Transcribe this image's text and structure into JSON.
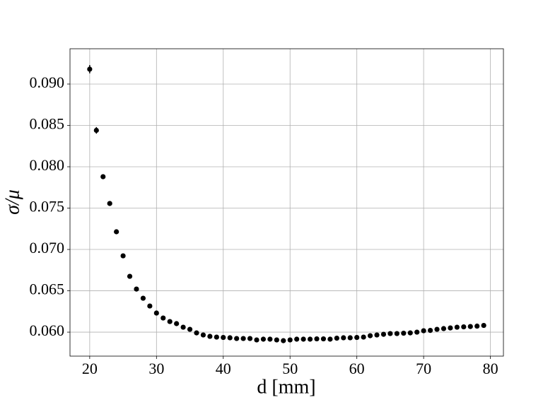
{
  "chart_data": {
    "type": "scatter",
    "xlabel": "d [mm]",
    "ylabel": "σ/μ",
    "x": [
      20,
      21,
      22,
      23,
      24,
      25,
      26,
      27,
      28,
      29,
      30,
      31,
      32,
      33,
      34,
      35,
      36,
      37,
      38,
      39,
      40,
      41,
      42,
      43,
      44,
      45,
      46,
      47,
      48,
      49,
      50,
      51,
      52,
      53,
      54,
      55,
      56,
      57,
      58,
      59,
      60,
      61,
      62,
      63,
      64,
      65,
      66,
      67,
      68,
      69,
      70,
      71,
      72,
      73,
      74,
      75,
      76,
      77,
      78,
      79
    ],
    "values": [
      0.0918,
      0.0844,
      0.0788,
      0.07556,
      0.07214,
      0.06923,
      0.06675,
      0.06521,
      0.0641,
      0.06316,
      0.06231,
      0.06171,
      0.06128,
      0.06103,
      0.0606,
      0.06034,
      0.05991,
      0.05966,
      0.05949,
      0.0594,
      0.05936,
      0.05932,
      0.05923,
      0.05923,
      0.05923,
      0.05906,
      0.05915,
      0.05915,
      0.05906,
      0.05897,
      0.05906,
      0.05915,
      0.05915,
      0.05915,
      0.05919,
      0.05919,
      0.05915,
      0.05927,
      0.05932,
      0.05932,
      0.05936,
      0.0594,
      0.05957,
      0.05966,
      0.05974,
      0.05983,
      0.05983,
      0.05987,
      0.05991,
      0.06,
      0.06017,
      0.06021,
      0.06034,
      0.06043,
      0.06051,
      0.0606,
      0.06064,
      0.06068,
      0.06073,
      0.06081
    ],
    "errors": [
      0.0005,
      0.0004,
      0.0003,
      0.0002,
      0.0002,
      0.0002,
      0.0002,
      0.0002,
      0.0002,
      0.0001,
      0.0001,
      0.0001,
      0.0001,
      0.0001,
      0.0001,
      0.0001,
      0.0001,
      0.0001,
      0.0001,
      0.0001,
      0.0001,
      0.0001,
      0.0001,
      0.0001,
      0.0001,
      0.0001,
      0.0001,
      0.0001,
      0.0001,
      0.0001,
      0.0001,
      0.0001,
      0.0001,
      0.0001,
      0.0001,
      0.0001,
      0.0001,
      0.0001,
      0.0001,
      0.0001,
      0.0001,
      0.0001,
      0.0001,
      0.0001,
      0.0001,
      0.0001,
      0.0001,
      0.0001,
      0.0001,
      0.0001,
      0.0001,
      0.0001,
      0.0001,
      0.0001,
      0.0001,
      0.0001,
      0.0001,
      0.0001,
      0.0001,
      0.0001
    ],
    "color": "#000000",
    "xlim": [
      17.05,
      81.95
    ],
    "xticks": [
      20,
      30,
      40,
      50,
      60,
      70,
      80
    ],
    "ylim": [
      0.0571,
      0.09427
    ],
    "yticks": [
      {
        "value": 0.06,
        "label": "0.060"
      },
      {
        "value": 0.065,
        "label": "0.065"
      },
      {
        "value": 0.07,
        "label": "0.070"
      },
      {
        "value": 0.075,
        "label": "0.075"
      },
      {
        "value": 0.08,
        "label": "0.080"
      },
      {
        "value": 0.085,
        "label": "0.085"
      },
      {
        "value": 0.09,
        "label": "0.090"
      }
    ],
    "grid": true
  }
}
